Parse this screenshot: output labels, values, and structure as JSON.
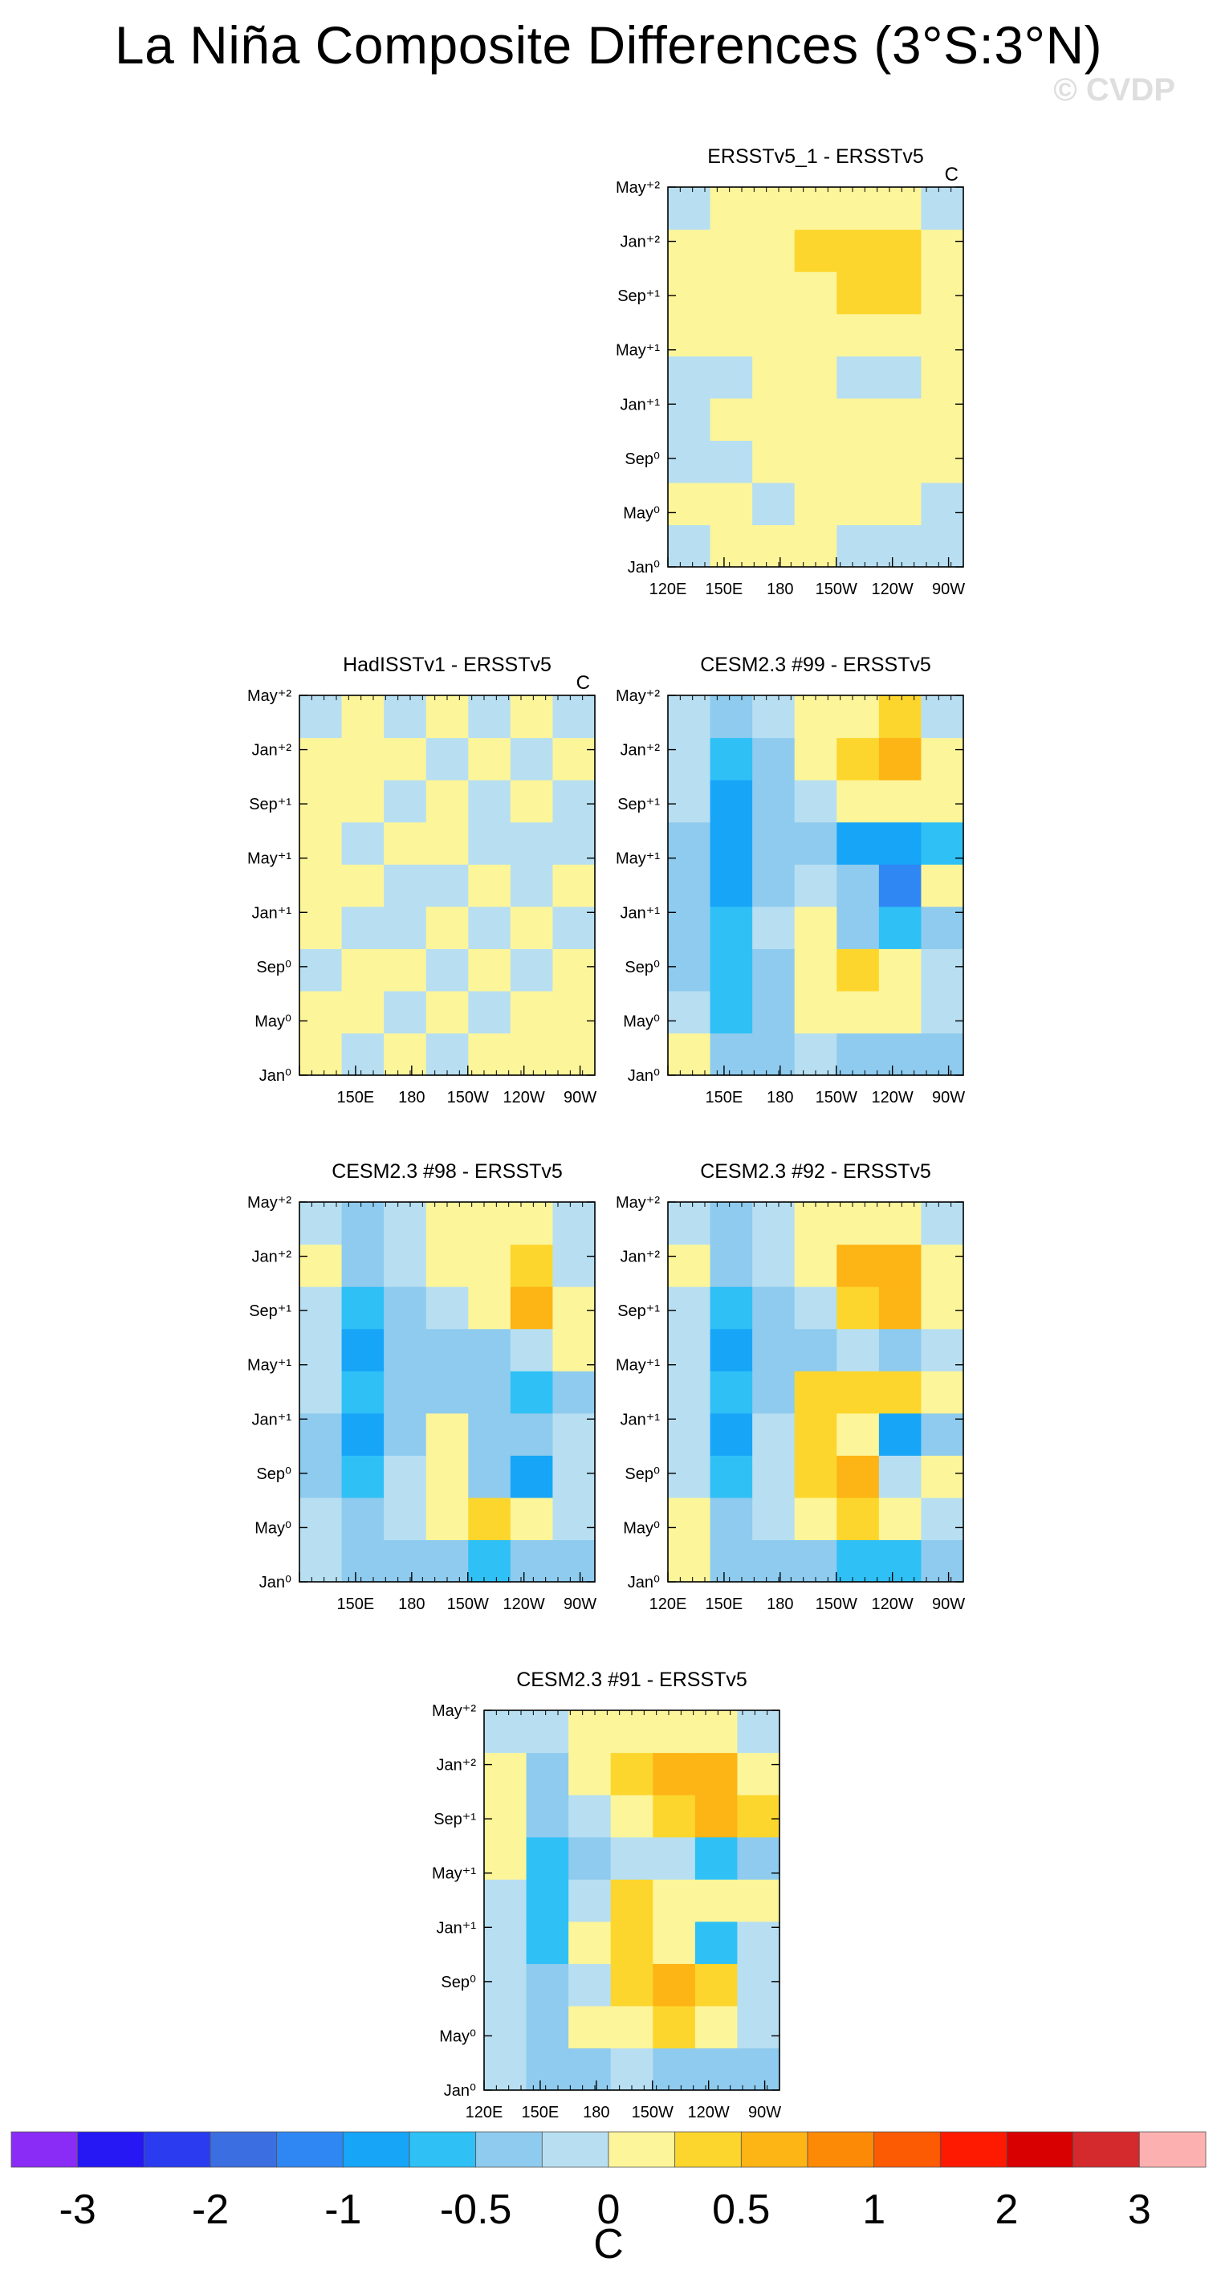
{
  "title": "La Niña Composite Differences (3°S:3°N)",
  "watermark": "© CVDP",
  "colorbar": {
    "colors": [
      "#8a2cf5",
      "#2617f5",
      "#2b3cf0",
      "#3b6ee0",
      "#2f87f4",
      "#17a5f7",
      "#2fc0f6",
      "#8ecbee",
      "#b7dff1",
      "#fdf59a",
      "#fdd62d",
      "#fdb415",
      "#fd8a06",
      "#fd5a04",
      "#fd1a00",
      "#d80000",
      "#d42a2d",
      "#fcb1b0"
    ],
    "labels": [
      "-3",
      "-2",
      "-1",
      "-0.5",
      "0",
      "0.5",
      "1",
      "2",
      "3"
    ],
    "units": "C"
  },
  "chart_data": [
    {
      "type": "heatmap",
      "title": "ERSSTv5_1 - ERSSTv5",
      "units": "C",
      "x_ticks": [
        "120E",
        "150E",
        "180",
        "150W",
        "120W",
        "90W"
      ],
      "y_ticks": [
        "Jan⁰",
        "May⁰",
        "Sep⁰",
        "Jan⁺¹",
        "May⁺¹",
        "Sep⁺¹",
        "Jan⁺²",
        "May⁺²"
      ],
      "z": [
        [
          -0.1,
          0,
          0.1,
          0,
          -0.1,
          -0.1,
          -0.2
        ],
        [
          0,
          0.1,
          -0.1,
          0.1,
          0,
          0,
          -0.1
        ],
        [
          -0.1,
          -0.1,
          0.1,
          0.1,
          0.1,
          0.1,
          0
        ],
        [
          -0.1,
          0,
          0.1,
          0.1,
          0,
          0.1,
          0.1
        ],
        [
          -0.1,
          -0.1,
          0,
          0.1,
          -0.1,
          -0.1,
          0.1
        ],
        [
          0,
          0,
          0.1,
          0.1,
          0.1,
          0.1,
          0
        ],
        [
          0,
          0.1,
          0.1,
          0.2,
          0.3,
          0.4,
          0.2
        ],
        [
          0,
          0.1,
          0.2,
          0.3,
          0.3,
          0.3,
          0.1
        ],
        [
          -0.1,
          0,
          0.1,
          0.2,
          0.1,
          0.1,
          -0.1
        ]
      ]
    },
    {
      "type": "heatmap",
      "title": "HadISSTv1 - ERSSTv5",
      "units": "C",
      "x_ticks": [
        "",
        "150E",
        "180",
        "150W",
        "120W",
        "90W"
      ],
      "y_ticks": [
        "Jan⁰",
        "May⁰",
        "Sep⁰",
        "Jan⁺¹",
        "May⁺¹",
        "Sep⁺¹",
        "Jan⁺²",
        "May⁺²"
      ],
      "z": [
        [
          0,
          -0.1,
          0.1,
          -0.1,
          0.1,
          0,
          0.1
        ],
        [
          0.1,
          0,
          -0.1,
          0.1,
          -0.1,
          0.1,
          0
        ],
        [
          -0.1,
          0.1,
          0,
          -0.1,
          0.1,
          -0.1,
          0
        ],
        [
          0.1,
          -0.1,
          -0.1,
          0,
          -0.1,
          0,
          -0.1
        ],
        [
          0,
          0.1,
          -0.1,
          -0.1,
          0,
          -0.2,
          0
        ],
        [
          0.1,
          -0.1,
          0,
          0.1,
          -0.1,
          -0.1,
          -0.1
        ],
        [
          0,
          0.1,
          -0.1,
          0,
          -0.1,
          0,
          -0.1
        ],
        [
          0.1,
          0,
          0,
          -0.1,
          0,
          -0.1,
          0
        ],
        [
          -0.1,
          0,
          -0.1,
          0.1,
          -0.1,
          0,
          -0.1
        ]
      ]
    },
    {
      "type": "heatmap",
      "title": "CESM2.3 #99 - ERSSTv5",
      "units": "",
      "x_ticks": [
        "",
        "150E",
        "180",
        "150W",
        "120W",
        "90W"
      ],
      "y_ticks": [
        "Jan⁰",
        "May⁰",
        "Sep⁰",
        "Jan⁺¹",
        "May⁺¹",
        "Sep⁺¹",
        "Jan⁺²",
        "May⁺²"
      ],
      "z": [
        [
          0,
          -0.4,
          -0.3,
          -0.1,
          -0.3,
          -0.4,
          -0.3
        ],
        [
          -0.1,
          -0.6,
          -0.4,
          0.1,
          0.2,
          0.1,
          -0.1
        ],
        [
          -0.3,
          -0.7,
          -0.4,
          0.1,
          0.3,
          0.2,
          -0.1
        ],
        [
          -0.3,
          -0.7,
          -0.2,
          0.1,
          -0.4,
          -0.7,
          -0.3
        ],
        [
          -0.3,
          -0.8,
          -0.3,
          -0.2,
          -0.3,
          -1.1,
          0.1
        ],
        [
          -0.3,
          -0.8,
          -0.4,
          -0.3,
          -0.8,
          -0.8,
          -0.6
        ],
        [
          -0.2,
          -0.9,
          -0.5,
          -0.2,
          0.1,
          0.2,
          0
        ],
        [
          -0.2,
          -0.7,
          -0.4,
          0.2,
          0.4,
          0.7,
          0.1
        ],
        [
          -0.1,
          -0.5,
          -0.2,
          0.1,
          0.2,
          0.3,
          -0.2
        ]
      ]
    },
    {
      "type": "heatmap",
      "title": "CESM2.3 #98 - ERSSTv5",
      "units": "",
      "x_ticks": [
        "",
        "150E",
        "180",
        "150W",
        "120W",
        "90W"
      ],
      "y_ticks": [
        "Jan⁰",
        "May⁰",
        "Sep⁰",
        "Jan⁺¹",
        "May⁺¹",
        "Sep⁺¹",
        "Jan⁺²",
        "May⁺²"
      ],
      "z": [
        [
          -0.2,
          -0.3,
          -0.4,
          -0.5,
          -0.6,
          -0.5,
          -0.3
        ],
        [
          -0.1,
          -0.4,
          -0.2,
          0.2,
          0.3,
          0.1,
          -0.2
        ],
        [
          -0.3,
          -0.6,
          -0.2,
          0.1,
          -0.3,
          -0.9,
          -0.2
        ],
        [
          -0.3,
          -1.0,
          -0.3,
          0.1,
          -0.4,
          -0.4,
          -0.2
        ],
        [
          -0.2,
          -0.7,
          -0.4,
          -0.3,
          -0.5,
          -0.7,
          -0.3
        ],
        [
          -0.2,
          -0.9,
          -0.5,
          -0.3,
          -0.3,
          -0.2,
          0
        ],
        [
          -0.1,
          -0.7,
          -0.3,
          -0.1,
          0.1,
          0.5,
          0.1
        ],
        [
          0,
          -0.5,
          -0.2,
          0.1,
          0.2,
          0.4,
          -0.1
        ],
        [
          -0.1,
          -0.4,
          -0.2,
          0.1,
          0.1,
          0.1,
          -0.2
        ]
      ]
    },
    {
      "type": "heatmap",
      "title": "CESM2.3 #92 - ERSSTv5",
      "units": "",
      "x_ticks": [
        "120E",
        "150E",
        "180",
        "150W",
        "120W",
        "90W"
      ],
      "y_ticks": [
        "Jan⁰",
        "May⁰",
        "Sep⁰",
        "Jan⁺¹",
        "May⁺¹",
        "Sep⁺¹",
        "Jan⁺²",
        "May⁺²"
      ],
      "z": [
        [
          0.1,
          -0.3,
          -0.3,
          -0.5,
          -0.6,
          -0.6,
          -0.4
        ],
        [
          0.1,
          -0.4,
          -0.2,
          0.1,
          0.3,
          0.1,
          -0.1
        ],
        [
          -0.1,
          -0.6,
          -0.1,
          0.3,
          0.5,
          -0.1,
          0.1
        ],
        [
          -0.2,
          -0.8,
          -0.2,
          0.4,
          0.2,
          -0.9,
          -0.3
        ],
        [
          -0.2,
          -0.7,
          -0.3,
          0.3,
          0.4,
          0.3,
          0
        ],
        [
          -0.2,
          -0.8,
          -0.5,
          -0.3,
          -0.2,
          -0.3,
          -0.2
        ],
        [
          -0.1,
          -0.7,
          -0.3,
          -0.1,
          0.3,
          0.6,
          0.2
        ],
        [
          0,
          -0.5,
          -0.2,
          0.2,
          0.5,
          0.5,
          0
        ],
        [
          -0.1,
          -0.3,
          -0.1,
          0.1,
          0.2,
          0.1,
          -0.2
        ]
      ]
    },
    {
      "type": "heatmap",
      "title": "CESM2.3 #91 - ERSSTv5",
      "units": "",
      "x_ticks": [
        "120E",
        "150E",
        "180",
        "150W",
        "120W",
        "90W"
      ],
      "y_ticks": [
        "Jan⁰",
        "May⁰",
        "Sep⁰",
        "Jan⁺¹",
        "May⁺¹",
        "Sep⁺¹",
        "Jan⁺²",
        "May⁺²"
      ],
      "z": [
        [
          -0.2,
          -0.3,
          -0.3,
          -0.2,
          -0.3,
          -0.4,
          -0.5
        ],
        [
          -0.1,
          -0.3,
          0,
          0.2,
          0.3,
          0.1,
          -0.2
        ],
        [
          -0.1,
          -0.5,
          -0.1,
          0.3,
          0.5,
          0.3,
          -0.1
        ],
        [
          -0.2,
          -0.6,
          0.2,
          0.3,
          0.2,
          -0.6,
          -0.2
        ],
        [
          -0.2,
          -0.7,
          -0.2,
          0.3,
          0.1,
          0.1,
          0
        ],
        [
          0,
          -0.6,
          -0.4,
          -0.2,
          -0.2,
          -0.7,
          -0.3
        ],
        [
          0,
          -0.4,
          -0.2,
          0.2,
          0.3,
          0.6,
          0.3
        ],
        [
          0.1,
          -0.3,
          0.1,
          0.3,
          0.5,
          0.5,
          0
        ],
        [
          -0.1,
          -0.2,
          0.1,
          0.2,
          0.2,
          0.1,
          -0.1
        ]
      ]
    }
  ]
}
